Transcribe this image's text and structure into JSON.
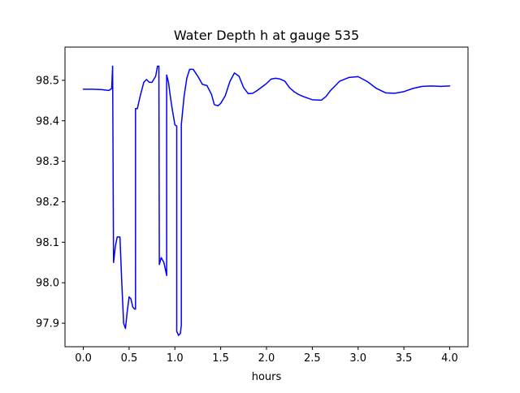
{
  "chart_data": {
    "type": "line",
    "title": "Water Depth h at gauge 535",
    "xlabel": "hours",
    "ylabel": "",
    "xlim": [
      -0.2,
      4.2
    ],
    "ylim": [
      97.842,
      98.582
    ],
    "xticks": [
      0.0,
      0.5,
      1.0,
      1.5,
      2.0,
      2.5,
      3.0,
      3.5,
      4.0
    ],
    "xtick_labels": [
      "0.0",
      "0.5",
      "1.0",
      "1.5",
      "2.0",
      "2.5",
      "3.0",
      "3.5",
      "4.0"
    ],
    "yticks": [
      97.9,
      98.0,
      98.1,
      98.2,
      98.3,
      98.4,
      98.5
    ],
    "ytick_labels": [
      "97.9",
      "98.0",
      "98.1",
      "98.2",
      "98.3",
      "98.4",
      "98.5"
    ],
    "grid": false,
    "legend": "none",
    "series": [
      {
        "color": "#0000ff",
        "x": [
          0.0,
          0.1,
          0.2,
          0.28,
          0.31,
          0.32,
          0.33,
          0.33,
          0.35,
          0.37,
          0.4,
          0.42,
          0.44,
          0.46,
          0.48,
          0.5,
          0.52,
          0.54,
          0.56,
          0.57,
          0.57,
          0.59,
          0.62,
          0.66,
          0.69,
          0.72,
          0.75,
          0.79,
          0.81,
          0.825,
          0.83,
          0.83,
          0.85,
          0.88,
          0.91,
          0.91,
          0.93,
          0.95,
          0.97,
          1.0,
          1.02,
          1.02,
          1.04,
          1.06,
          1.07,
          1.07,
          1.1,
          1.13,
          1.16,
          1.2,
          1.25,
          1.3,
          1.35,
          1.4,
          1.43,
          1.47,
          1.5,
          1.55,
          1.6,
          1.65,
          1.7,
          1.75,
          1.8,
          1.85,
          1.9,
          2.0,
          2.05,
          2.1,
          2.15,
          2.2,
          2.25,
          2.3,
          2.35,
          2.4,
          2.5,
          2.6,
          2.65,
          2.7,
          2.8,
          2.9,
          3.0,
          3.1,
          3.2,
          3.3,
          3.4,
          3.5,
          3.6,
          3.7,
          3.8,
          3.9,
          4.0
        ],
        "y": [
          98.478,
          98.478,
          98.477,
          98.475,
          98.48,
          98.535,
          98.05,
          98.05,
          98.09,
          98.113,
          98.113,
          98.0,
          97.9,
          97.887,
          97.93,
          97.965,
          97.96,
          97.94,
          97.935,
          97.935,
          98.43,
          98.43,
          98.46,
          98.495,
          98.502,
          98.495,
          98.495,
          98.51,
          98.535,
          98.535,
          98.045,
          98.045,
          98.062,
          98.05,
          98.018,
          98.513,
          98.495,
          98.46,
          98.43,
          98.39,
          98.387,
          97.88,
          97.87,
          97.875,
          97.895,
          98.39,
          98.46,
          98.505,
          98.527,
          98.527,
          98.51,
          98.49,
          98.487,
          98.465,
          98.44,
          98.437,
          98.443,
          98.462,
          98.497,
          98.518,
          98.51,
          98.482,
          98.467,
          98.468,
          98.475,
          98.492,
          98.503,
          98.505,
          98.503,
          98.498,
          98.482,
          98.472,
          98.465,
          98.46,
          98.452,
          98.451,
          98.46,
          98.475,
          98.498,
          98.507,
          98.509,
          98.497,
          98.48,
          98.469,
          98.468,
          98.472,
          98.48,
          98.485,
          98.486,
          98.485,
          98.486
        ]
      }
    ]
  }
}
